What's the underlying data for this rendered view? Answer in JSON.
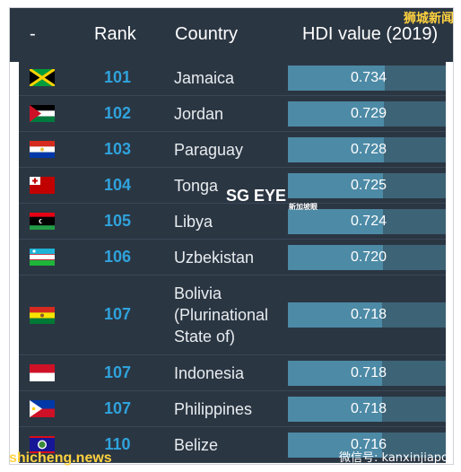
{
  "header": {
    "dash": "-",
    "rank": "Rank",
    "country": "Country",
    "hdi": "HDI value (2019)"
  },
  "rows": [
    {
      "rank": "101",
      "country_lines": [
        "Jamaica"
      ],
      "hdi": "0.734",
      "hdi_num": 0.734,
      "flag": "jamaica-flag-icon"
    },
    {
      "rank": "102",
      "country_lines": [
        "Jordan"
      ],
      "hdi": "0.729",
      "hdi_num": 0.729,
      "flag": "jordan-flag-icon"
    },
    {
      "rank": "103",
      "country_lines": [
        "Paraguay"
      ],
      "hdi": "0.728",
      "hdi_num": 0.728,
      "flag": "paraguay-flag-icon"
    },
    {
      "rank": "104",
      "country_lines": [
        "Tonga"
      ],
      "hdi": "0.725",
      "hdi_num": 0.725,
      "flag": "tonga-flag-icon"
    },
    {
      "rank": "105",
      "country_lines": [
        "Libya"
      ],
      "hdi": "0.724",
      "hdi_num": 0.724,
      "flag": "libya-flag-icon"
    },
    {
      "rank": "106",
      "country_lines": [
        "Uzbekistan"
      ],
      "hdi": "0.720",
      "hdi_num": 0.72,
      "flag": "uzbekistan-flag-icon"
    },
    {
      "rank": "107",
      "country_lines": [
        "Bolivia",
        "(Plurinational",
        "State of)"
      ],
      "hdi": "0.718",
      "hdi_num": 0.718,
      "flag": "bolivia-flag-icon"
    },
    {
      "rank": "107",
      "country_lines": [
        "Indonesia"
      ],
      "hdi": "0.718",
      "hdi_num": 0.718,
      "flag": "indonesia-flag-icon"
    },
    {
      "rank": "107",
      "country_lines": [
        "Philippines"
      ],
      "hdi": "0.718",
      "hdi_num": 0.718,
      "flag": "philippines-flag-icon"
    },
    {
      "rank": "110",
      "country_lines": [
        "Belize"
      ],
      "hdi": "0.716",
      "hdi_num": 0.716,
      "flag": "belize-flag-icon"
    }
  ],
  "watermarks": {
    "top_right": "狮城新闻",
    "center": "SG EYE",
    "center_sub": "新加坡眼",
    "bottom_left": "shicheng.news",
    "bottom_right": "微信号: kanxinjiapo"
  },
  "colors": {
    "header_bg": "#2b3643",
    "row_bg": "#2b3643",
    "rank_text": "#2fa3dc",
    "bar": "#4d8aa6",
    "bar_track": "#3d6376"
  }
}
